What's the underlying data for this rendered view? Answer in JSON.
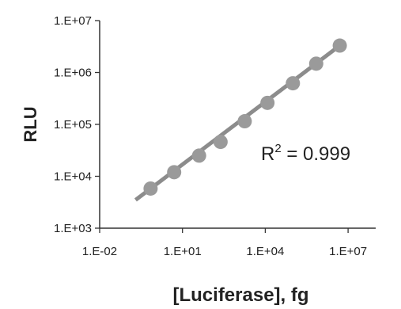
{
  "chart_data": {
    "type": "scatter",
    "title": "",
    "xlabel": "[Luciferase], fg",
    "ylabel": "RLU",
    "x_scale": "log",
    "y_scale": "log",
    "xlim": [
      0.01,
      100000000
    ],
    "ylim": [
      1000,
      10000000
    ],
    "x_ticks": [
      0.01,
      10,
      10000,
      10000000
    ],
    "x_tick_labels": [
      "1.E-02",
      "1.E+01",
      "1.E+04",
      "1.E+07"
    ],
    "y_ticks": [
      1000,
      10000,
      100000,
      1000000,
      10000000
    ],
    "y_tick_labels": [
      "1.E+03",
      "1.E+04",
      "1.E+05",
      "1.E+06",
      "1.E+07"
    ],
    "grid": false,
    "series": [
      {
        "x": [
          0.7,
          5,
          40,
          240,
          1800,
          12000,
          100000,
          700000,
          5000000
        ],
        "y": [
          5800,
          12000,
          25000,
          46000,
          115000,
          260000,
          620000,
          1480000,
          3300000
        ]
      }
    ],
    "trendline": {
      "x": [
        0.2,
        5000000
      ],
      "y": [
        3500,
        3300000
      ]
    },
    "annotation": {
      "base": "R",
      "superscript": "2",
      "rest": " = 0.999"
    },
    "colors": {
      "marker": "#9a9a9a",
      "trendline": "#8c8c8c",
      "axis": "#333333"
    }
  }
}
